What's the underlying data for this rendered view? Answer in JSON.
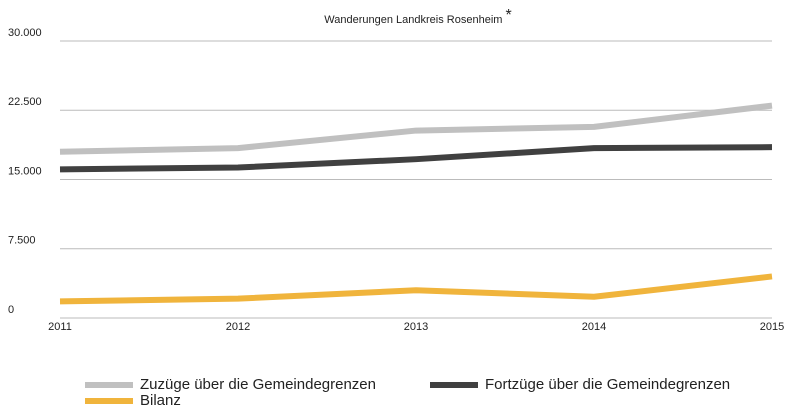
{
  "chart_data": {
    "type": "line",
    "title": "Wanderungen Landkreis Rosenheim",
    "title_note": "*",
    "categories": [
      "2011",
      "2012",
      "2013",
      "2014",
      "2015"
    ],
    "series": [
      {
        "name": "Zuzüge über die Gemeindegrenzen",
        "color": "#c0c0c0",
        "values": [
          18000,
          18400,
          20300,
          20700,
          23000
        ]
      },
      {
        "name": "Fortzüge über die Gemeindegrenzen",
        "color": "#404040",
        "values": [
          16100,
          16300,
          17200,
          18400,
          18500
        ]
      },
      {
        "name": "Bilanz",
        "color": "#f0b43c",
        "values": [
          1800,
          2100,
          3000,
          2300,
          4500
        ]
      }
    ],
    "ylim": [
      0,
      30000
    ],
    "yticks": [
      0,
      {
        "value": 7500,
        "label": "7.500"
      },
      {
        "value": 15000,
        "label": "15.000"
      },
      {
        "value": 22500,
        "label": "22.500"
      },
      {
        "value": 30000,
        "label": "30.000"
      }
    ],
    "grid": true
  }
}
